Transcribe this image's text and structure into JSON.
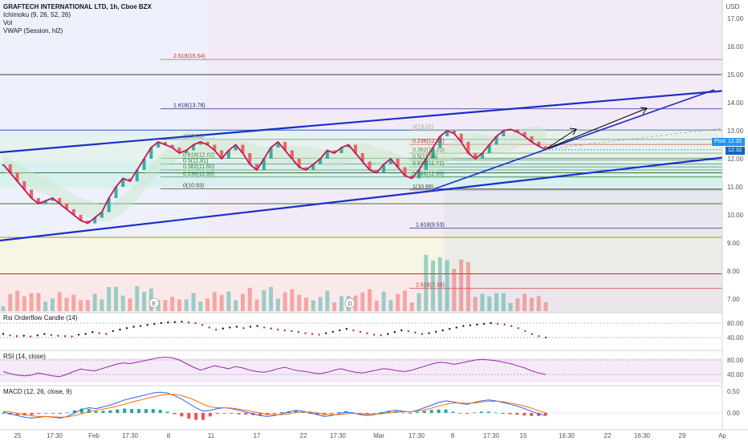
{
  "header": {
    "symbol": "GRAFTECH INTERNATIONAL LTD, 1h, Cboe BZX",
    "indicators": [
      "Ichimoku (9, 26, 52, 26)",
      "Vol",
      "VWAP (Session, hl2)"
    ]
  },
  "currency": "USD",
  "price_axis": [
    "17.00",
    "16.00",
    "15.00",
    "14.00",
    "13.00",
    "12.00",
    "11.00",
    "10.00",
    "9.00",
    "8.00",
    "7.00"
  ],
  "post_label": "Post",
  "price_badges": [
    "12.32",
    "12.32"
  ],
  "colors": {
    "up": "#26a69a",
    "down": "#ef5350",
    "trendline": "#1a2ecc",
    "price_line": "#c2185b",
    "rsi": "#9c27b0",
    "macd": "#2962ff",
    "signal": "#ff6d00"
  },
  "time_axis": [
    "25",
    "17:30",
    "Feb",
    "17:30",
    "8",
    "11",
    "17",
    "22",
    "17:30",
    "Mar",
    "17:30",
    "8",
    "17:30",
    "15",
    "16:30",
    "22",
    "16:30",
    "29",
    "Ap"
  ],
  "event_markers": [
    "E",
    "D"
  ],
  "fib_left": [
    {
      "label": "2.618(15.54)",
      "price": 15.54,
      "color": "#d32f2f"
    },
    {
      "label": "1.618(13.78)",
      "price": 13.78,
      "color": "#1a237e"
    },
    {
      "label": "1(12.69)",
      "price": 12.69,
      "color": "#616161"
    },
    {
      "label": "0.618(12.02)",
      "price": 12.02,
      "color": "#2e7d32"
    },
    {
      "label": "0.5(11.81)",
      "price": 11.81,
      "color": "#2e7d32"
    },
    {
      "label": "0.382(11.60)",
      "price": 11.6,
      "color": "#2e7d32"
    },
    {
      "label": "0.236(11.35)",
      "price": 11.35,
      "color": "#2e7d32"
    },
    {
      "label": "0(10.93)",
      "price": 10.93,
      "color": "#424242"
    }
  ],
  "fib_right": [
    {
      "label": "0(13.02)",
      "price": 13.02,
      "color": "#9e9e9e"
    },
    {
      "label": "0.236(12.51)",
      "price": 12.51,
      "color": "#d32f2f"
    },
    {
      "label": "0.382(12.20)",
      "price": 12.2,
      "color": "#558b2f"
    },
    {
      "label": "0.5(11.96)",
      "price": 11.96,
      "color": "#2e7d32"
    },
    {
      "label": "0.618(11.71)",
      "price": 11.71,
      "color": "#2e7d32"
    },
    {
      "label": "0.786(11.35)",
      "price": 11.35,
      "color": "#2e7d32"
    },
    {
      "label": "1(10.89)",
      "price": 10.89,
      "color": "#424242"
    },
    {
      "label": "1.618(9.53)",
      "price": 9.53,
      "color": "#1a237e"
    },
    {
      "label": "2.618(7.38)",
      "price": 7.38,
      "color": "#d32f2f"
    }
  ],
  "horizontal_levels": [
    {
      "price": 15.0,
      "color": "#424242"
    },
    {
      "price": 13.02,
      "color": "#1565c0"
    },
    {
      "price": 11.5,
      "color": "#2e7d32"
    },
    {
      "price": 10.4,
      "color": "#2e7d32"
    },
    {
      "price": 9.2,
      "color": "#9e9d24"
    },
    {
      "price": 7.9,
      "color": "#c62828"
    }
  ],
  "rsi_orderflow": {
    "label": "Rsi Orderflow Candle (14)",
    "axis": [
      "80.00",
      "40.00"
    ],
    "values": [
      50,
      46,
      44,
      45,
      43,
      46,
      50,
      47,
      45,
      44,
      43,
      48,
      50,
      55,
      52,
      50,
      58,
      62,
      66,
      70,
      72,
      75,
      78,
      80,
      82,
      83,
      84,
      82,
      80,
      75,
      68,
      62,
      65,
      68,
      70,
      66,
      70,
      72,
      68,
      65,
      62,
      60,
      58,
      55,
      52,
      50,
      48,
      52,
      56,
      60,
      64,
      60,
      56,
      52,
      48,
      46,
      50,
      55,
      60,
      58,
      54,
      50,
      52,
      56,
      60,
      64,
      68,
      72,
      74,
      76,
      78,
      80,
      78,
      76,
      72,
      66,
      58,
      50,
      44,
      40
    ]
  },
  "rsi": {
    "label": "RSI (14, close)",
    "axis": [
      "80.00",
      "40.00"
    ],
    "values": [
      48,
      42,
      38,
      36,
      38,
      44,
      40,
      36,
      34,
      40,
      48,
      55,
      52,
      50,
      56,
      62,
      68,
      72,
      70,
      74,
      78,
      82,
      86,
      88,
      86,
      80,
      70,
      60,
      52,
      58,
      64,
      60,
      56,
      62,
      58,
      52,
      48,
      46,
      50,
      56,
      60,
      54,
      50,
      48,
      44,
      42,
      46,
      52,
      56,
      50,
      46,
      44,
      48,
      52,
      56,
      54,
      50,
      48,
      52,
      58,
      64,
      70,
      74,
      72,
      68,
      72,
      76,
      80,
      82,
      80,
      78,
      74,
      70,
      64,
      58,
      50,
      44,
      40
    ]
  },
  "macd": {
    "label": "MACD (12, 26, close, 9)",
    "axis": [
      "0.50",
      "0.00"
    ],
    "macd_values": [
      0.02,
      -0.02,
      -0.06,
      -0.1,
      -0.12,
      -0.1,
      -0.08,
      -0.1,
      -0.12,
      -0.08,
      0.0,
      0.08,
      0.12,
      0.1,
      0.14,
      0.18,
      0.24,
      0.3,
      0.34,
      0.38,
      0.42,
      0.46,
      0.48,
      0.46,
      0.4,
      0.32,
      0.22,
      0.12,
      0.04,
      0.06,
      0.1,
      0.12,
      0.1,
      0.06,
      0.02,
      -0.02,
      -0.06,
      -0.08,
      -0.06,
      -0.02,
      0.02,
      0.06,
      0.04,
      0.0,
      -0.04,
      -0.08,
      -0.06,
      -0.02,
      0.02,
      0.0,
      -0.04,
      -0.06,
      -0.04,
      0.0,
      0.04,
      0.06,
      0.04,
      0.02,
      0.06,
      0.12,
      0.18,
      0.24,
      0.28,
      0.26,
      0.22,
      0.2,
      0.24,
      0.28,
      0.3,
      0.28,
      0.24,
      0.2,
      0.16,
      0.1,
      0.04,
      -0.02,
      -0.06
    ],
    "signal_values": [
      0.04,
      0.02,
      -0.01,
      -0.04,
      -0.07,
      -0.08,
      -0.08,
      -0.09,
      -0.1,
      -0.09,
      -0.06,
      -0.02,
      0.03,
      0.06,
      0.09,
      0.12,
      0.16,
      0.2,
      0.25,
      0.29,
      0.33,
      0.37,
      0.41,
      0.43,
      0.43,
      0.4,
      0.35,
      0.28,
      0.2,
      0.14,
      0.12,
      0.12,
      0.11,
      0.09,
      0.06,
      0.03,
      0.0,
      -0.03,
      -0.04,
      -0.04,
      -0.02,
      0.01,
      0.02,
      0.02,
      0.0,
      -0.03,
      -0.04,
      -0.04,
      -0.02,
      -0.01,
      -0.02,
      -0.03,
      -0.03,
      -0.02,
      0.0,
      0.02,
      0.03,
      0.03,
      0.04,
      0.07,
      0.11,
      0.16,
      0.2,
      0.23,
      0.23,
      0.22,
      0.23,
      0.25,
      0.27,
      0.27,
      0.26,
      0.23,
      0.2,
      0.16,
      0.11,
      0.05,
      0.0
    ]
  },
  "chart_data": {
    "type": "line",
    "series": [
      {
        "values": [
          11.8,
          11.5,
          11.2,
          10.9,
          10.6,
          10.4,
          10.5,
          10.6,
          10.4,
          10.2,
          10.0,
          9.8,
          9.7,
          9.9,
          10.1,
          10.6,
          11.0,
          11.3,
          11.2,
          11.6,
          12.0,
          12.4,
          12.6,
          12.5,
          12.4,
          12.2,
          12.3,
          12.5,
          12.6,
          12.5,
          12.3,
          12.0,
          12.3,
          12.5,
          12.2,
          11.8,
          11.6,
          12.0,
          12.4,
          12.6,
          12.3,
          12.0,
          11.7,
          11.6,
          11.8,
          12.0,
          12.3,
          12.2,
          12.4,
          12.5,
          12.2,
          11.9,
          11.6,
          11.5,
          11.8,
          12.0,
          11.7,
          11.4,
          11.3,
          11.6,
          12.0,
          12.4,
          12.8,
          13.0,
          12.9,
          12.6,
          12.2,
          12.0,
          12.2,
          12.5,
          12.8,
          13.0,
          13.05,
          12.95,
          12.8,
          12.6,
          12.45,
          12.32
        ]
      }
    ],
    "ylim": [
      6.5,
      17.5
    ],
    "current_price": 12.32
  }
}
